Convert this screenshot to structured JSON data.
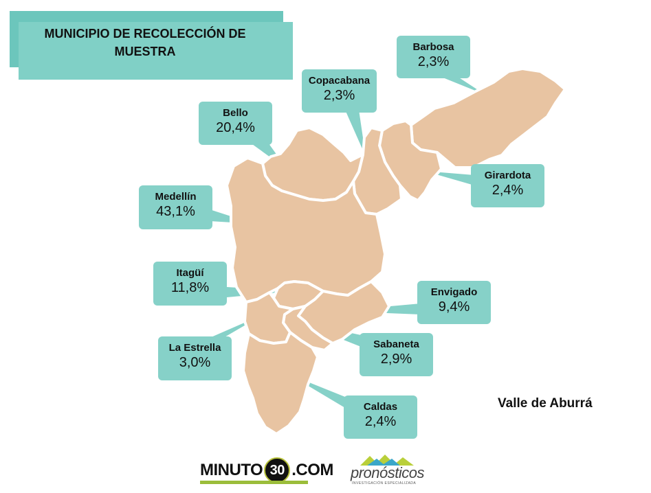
{
  "title": "MUNICIPIO DE RECOLECCIÓN DE MUESTRA",
  "map_label": "Valle de Aburrá",
  "municipalities": [
    {
      "id": "barbosa",
      "name": "Barbosa",
      "pct": "2,3%"
    },
    {
      "id": "copacabana",
      "name": "Copacabana",
      "pct": "2,3%"
    },
    {
      "id": "bello",
      "name": "Bello",
      "pct": "20,4%"
    },
    {
      "id": "girardota",
      "name": "Girardota",
      "pct": "2,4%"
    },
    {
      "id": "medellin",
      "name": "Medellín",
      "pct": "43,1%"
    },
    {
      "id": "itagui",
      "name": "Itagüí",
      "pct": "11,8%"
    },
    {
      "id": "envigado",
      "name": "Envigado",
      "pct": "9,4%"
    },
    {
      "id": "laestrella",
      "name": "La Estrella",
      "pct": "3,0%"
    },
    {
      "id": "sabaneta",
      "name": "Sabaneta",
      "pct": "2,9%"
    },
    {
      "id": "caldas",
      "name": "Caldas",
      "pct": "2,4%"
    }
  ],
  "logos": {
    "minuto30_left": "MINUTO",
    "minuto30_num": "30",
    "minuto30_right": ".COM",
    "pronosticos": "pronósticos",
    "pronosticos_sub": "INVESTIGACIÓN ESPECIALIZADA"
  },
  "colors": {
    "region": "#e8c4a2",
    "callout": "#86d1c8",
    "border": "#ffffff"
  }
}
